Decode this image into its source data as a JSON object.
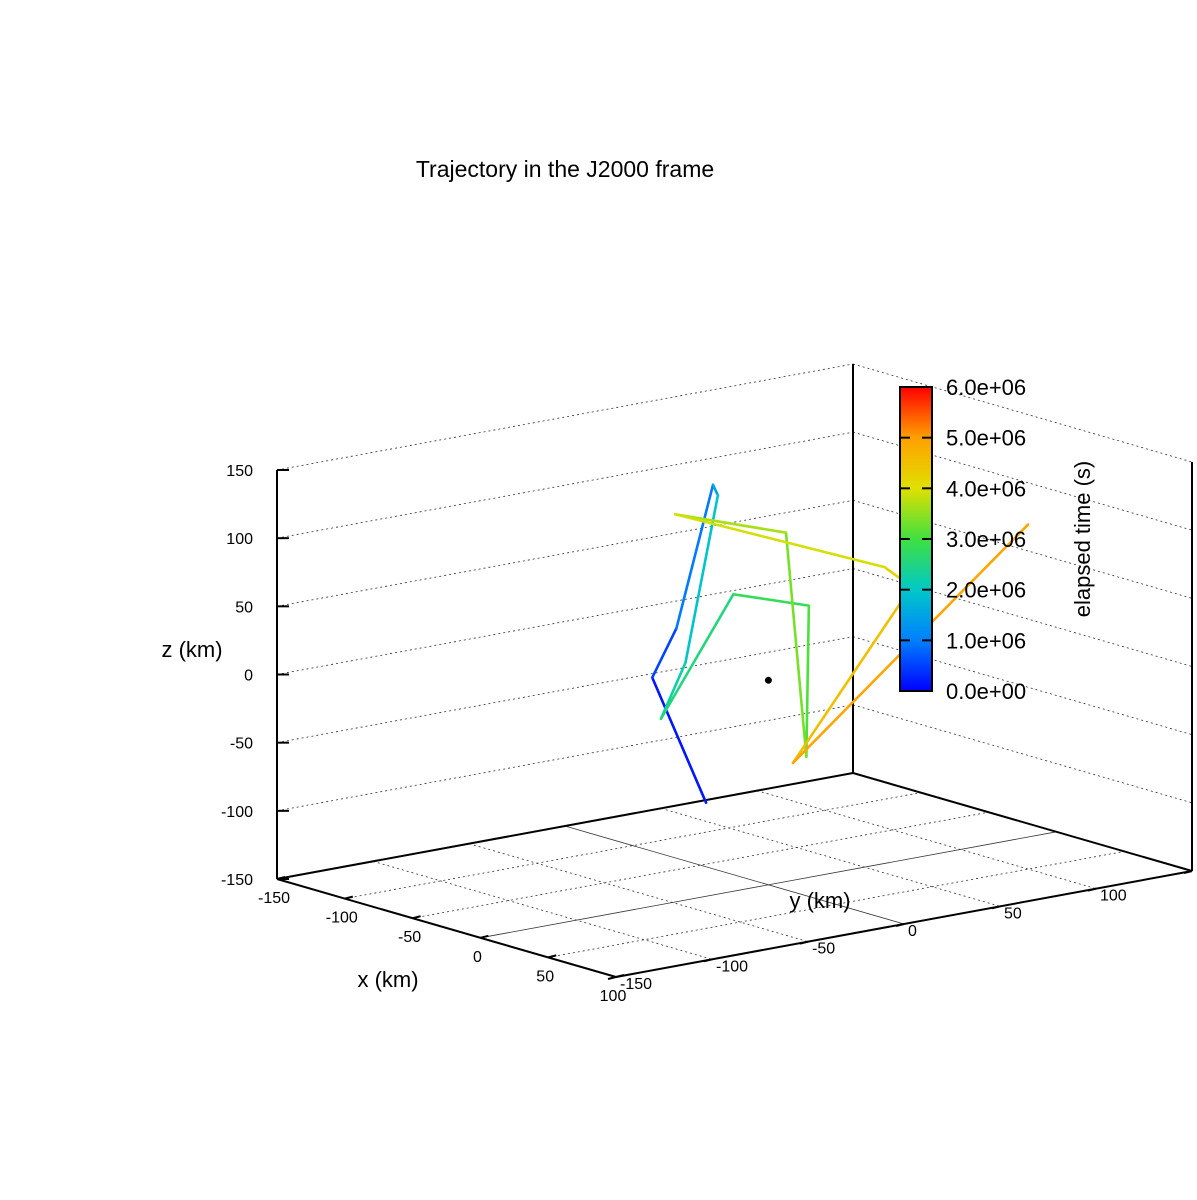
{
  "chart_data": {
    "type": "line",
    "title": "Trajectory in the J2000 frame",
    "xlabel": "x (km)",
    "ylabel": "y (km)",
    "zlabel": "z (km)",
    "xlim": [
      -150,
      100
    ],
    "ylim": [
      -150,
      150
    ],
    "zlim": [
      -150,
      150
    ],
    "x_ticks": [
      "-150",
      "-100",
      "-50",
      "0",
      "50",
      "100"
    ],
    "y_ticks": [
      "-150",
      "-100",
      "-50",
      "0",
      "50",
      "100",
      "150"
    ],
    "z_ticks": [
      "-150",
      "-100",
      "-50",
      "0",
      "50",
      "100",
      "150"
    ],
    "grid": true,
    "colorbar": {
      "label": "elapsed time (s)",
      "range": [
        0,
        6000000
      ],
      "ticks": [
        "0.0e+00",
        "1.0e+06",
        "2.0e+06",
        "3.0e+06",
        "4.0e+06",
        "5.0e+06",
        "6.0e+06"
      ],
      "colormap": [
        "#0000ff",
        "#0080ff",
        "#00c8c8",
        "#40e040",
        "#e0e000",
        "#ffa000",
        "#ff0000"
      ]
    },
    "series": [
      {
        "t": [
          0.0,
          0.35,
          0.7,
          1.2,
          1.8,
          2.1,
          2.4,
          2.7,
          2.95,
          3.2,
          3.5,
          3.8,
          4.05,
          4.35,
          4.65,
          5.2
        ],
        "x": [
          -12,
          -29,
          -48,
          -55,
          -16,
          -30,
          -24,
          -23,
          27,
          28,
          13,
          -90,
          29,
          12,
          -13,
          40
        ],
        "y": [
          -24,
          -40,
          -14,
          10,
          -15,
          -22,
          -39,
          -2,
          2,
          0,
          0,
          15,
          40,
          66,
          22,
          107
        ],
        "z": [
          -87,
          4,
          28,
          125,
          135,
          10,
          -25,
          57,
          62,
          -48,
          112,
          92,
          81,
          55,
          -70,
          98
        ]
      }
    ],
    "marker": {
      "x": 0,
      "y": 0,
      "z": 0
    }
  }
}
